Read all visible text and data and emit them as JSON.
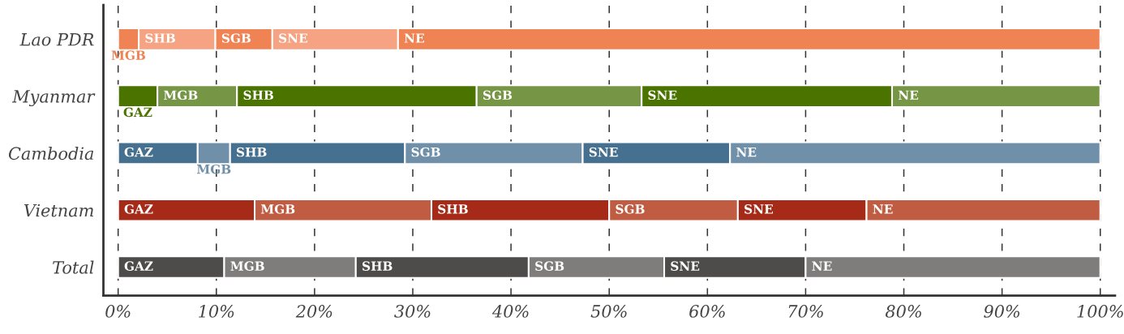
{
  "chart_data": {
    "type": "bar",
    "orientation": "horizontal",
    "stacked": true,
    "categories": [
      "Lao PDR",
      "Myanmar",
      "Cambodia",
      "Vietnam",
      "Total"
    ],
    "series": [
      {
        "name": "GAZ",
        "colors": [
          "#f08354",
          "#4a7300",
          "#46708f",
          "#a52a18",
          "#4e4c4a"
        ],
        "values": [
          null,
          4.0,
          8.1,
          13.9,
          10.8
        ]
      },
      {
        "name": "MGB",
        "colors": [
          "#f08354",
          "#779645",
          "#7090aa",
          "#c05c42",
          "#7f7d7c"
        ],
        "values": [
          2.1,
          8.1,
          3.3,
          18.0,
          13.4
        ]
      },
      {
        "name": "SHB",
        "colors": [
          "#f5a382",
          "#4a7300",
          "#46708f",
          "#a52a18",
          "#4e4c4a"
        ],
        "values": [
          7.8,
          24.4,
          17.8,
          18.1,
          17.6
        ]
      },
      {
        "name": "SGB",
        "colors": [
          "#f08354",
          "#779645",
          "#7090aa",
          "#c05c42",
          "#7f7d7c"
        ],
        "values": [
          5.8,
          16.8,
          18.1,
          13.1,
          13.8
        ]
      },
      {
        "name": "SNE",
        "colors": [
          "#f5a382",
          "#4a7300",
          "#46708f",
          "#a52a18",
          "#4e4c4a"
        ],
        "values": [
          12.8,
          25.5,
          15.0,
          13.1,
          14.4
        ]
      },
      {
        "name": "NE",
        "colors": [
          "#f08354",
          "#779645",
          "#7090aa",
          "#c05c42",
          "#7f7d7c"
        ],
        "values": [
          71.5,
          21.2,
          37.7,
          23.8,
          30.0
        ]
      }
    ],
    "xlim": [
      -1.5,
      101.5
    ],
    "xticks": [
      {
        "value": 0,
        "label": "0%"
      },
      {
        "value": 10,
        "label": "10%"
      },
      {
        "value": 20,
        "label": "20%"
      },
      {
        "value": 30,
        "label": "30%"
      },
      {
        "value": 40,
        "label": "40%"
      },
      {
        "value": 50,
        "label": "50%"
      },
      {
        "value": 60,
        "label": "60%"
      },
      {
        "value": 70,
        "label": "70%"
      },
      {
        "value": 80,
        "label": "80%"
      },
      {
        "value": 90,
        "label": "90%"
      },
      {
        "value": 100,
        "label": "100%"
      }
    ],
    "grid": "x",
    "legend": false
  }
}
